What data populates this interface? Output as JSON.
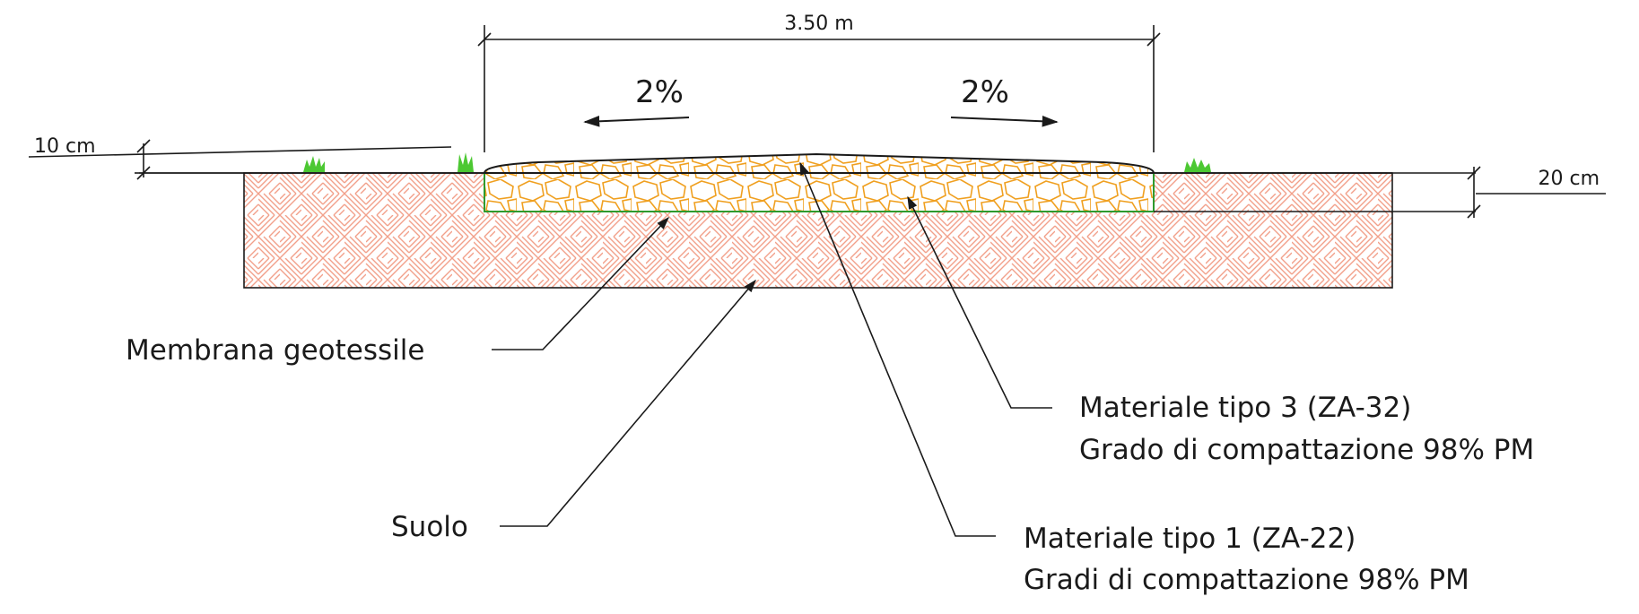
{
  "dimensions": {
    "width_label": "3.50 m",
    "left_height_label": "10 cm",
    "right_height_label": "20 cm"
  },
  "slopes": {
    "left": "2%",
    "right": "2%"
  },
  "callouts": {
    "geotextile": "Membrana geotessile",
    "soil": "Suolo",
    "material3_line1": "Materiale tipo 3 (ZA-32)",
    "material3_line2": "Grado di compattazione 98% PM",
    "material1_line1": "Materiale tipo 1 (ZA-22)",
    "material1_line2": "Gradi di compattazione 98% PM"
  },
  "colors": {
    "soil_hatch": "#f2a08a",
    "aggregate": "#f0a020",
    "geotextile": "#2e9a2e",
    "grass": "#4cc832",
    "line": "#1a1a1a"
  }
}
